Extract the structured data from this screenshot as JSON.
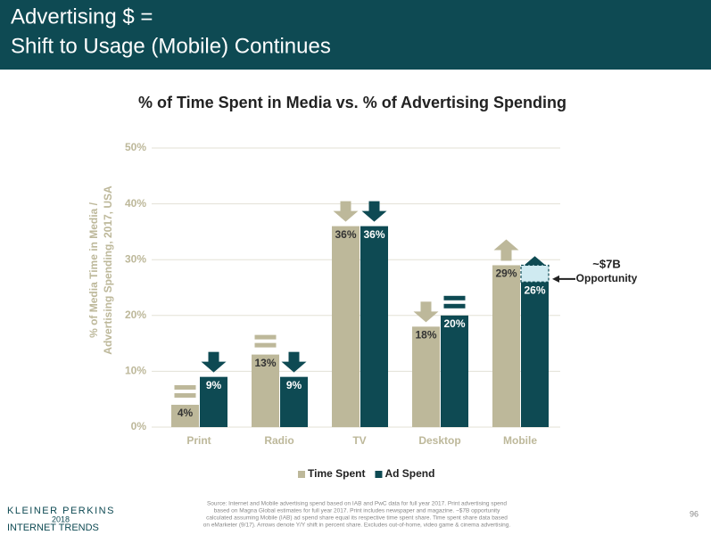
{
  "header": {
    "title_lines": [
      "Advertising $ =",
      "Shift to Usage (Mobile) Continues"
    ]
  },
  "chart_data": {
    "type": "bar",
    "title": "% of Time Spent in Media vs. % of Advertising Spending",
    "ylabel": [
      "% of Media Time in Media /",
      "Advertising Spending, 2017, USA"
    ],
    "categories": [
      "Print",
      "Radio",
      "TV",
      "Desktop",
      "Mobile"
    ],
    "series": [
      {
        "name": "Time Spent",
        "color": "#bdb89a",
        "label_color": "#333333",
        "values": [
          4,
          13,
          36,
          18,
          29
        ],
        "value_labels": [
          "4%",
          "13%",
          "36%",
          "18%",
          "29%"
        ],
        "shift": [
          "flat",
          "flat",
          "down",
          "down",
          "up"
        ]
      },
      {
        "name": "Ad Spend",
        "color": "#0e4a53",
        "label_color": "#ffffff",
        "values": [
          9,
          9,
          36,
          20,
          26
        ],
        "value_labels": [
          "9%",
          "9%",
          "36%",
          "20%",
          "26%"
        ],
        "shift": [
          "down",
          "down",
          "down",
          "flat",
          "up"
        ]
      }
    ],
    "ylim": [
      0,
      50
    ],
    "yticks": [
      {
        "value": 0,
        "label": "0%"
      },
      {
        "value": 10,
        "label": "10%"
      },
      {
        "value": 20,
        "label": "20%"
      },
      {
        "value": 30,
        "label": "30%"
      },
      {
        "value": 40,
        "label": "40%"
      },
      {
        "value": 50,
        "label": "50%"
      }
    ],
    "grid": true,
    "annotation": [
      "~$7B",
      "Opportunity"
    ]
  },
  "footer": {
    "logo": [
      "KLEINER PERKINS",
      "2018",
      "INTERNET TRENDS"
    ],
    "source": [
      "Source: Internet and Mobile advertising spend based on IAB and PwC data for full year 2017. Print advertising spend",
      "based on Magna Global estimates for full year 2017. Print includes newspaper and magazine. ~$7B opportunity",
      "calculated assuming Mobile (IAB) ad spend share equal its respective time spent share. Time spent share data based",
      "on eMarketer (9/17). Arrows denote Y/Y shift in percent share. Excludes out-of-home, video game & cinema advertising."
    ],
    "page": "96"
  }
}
